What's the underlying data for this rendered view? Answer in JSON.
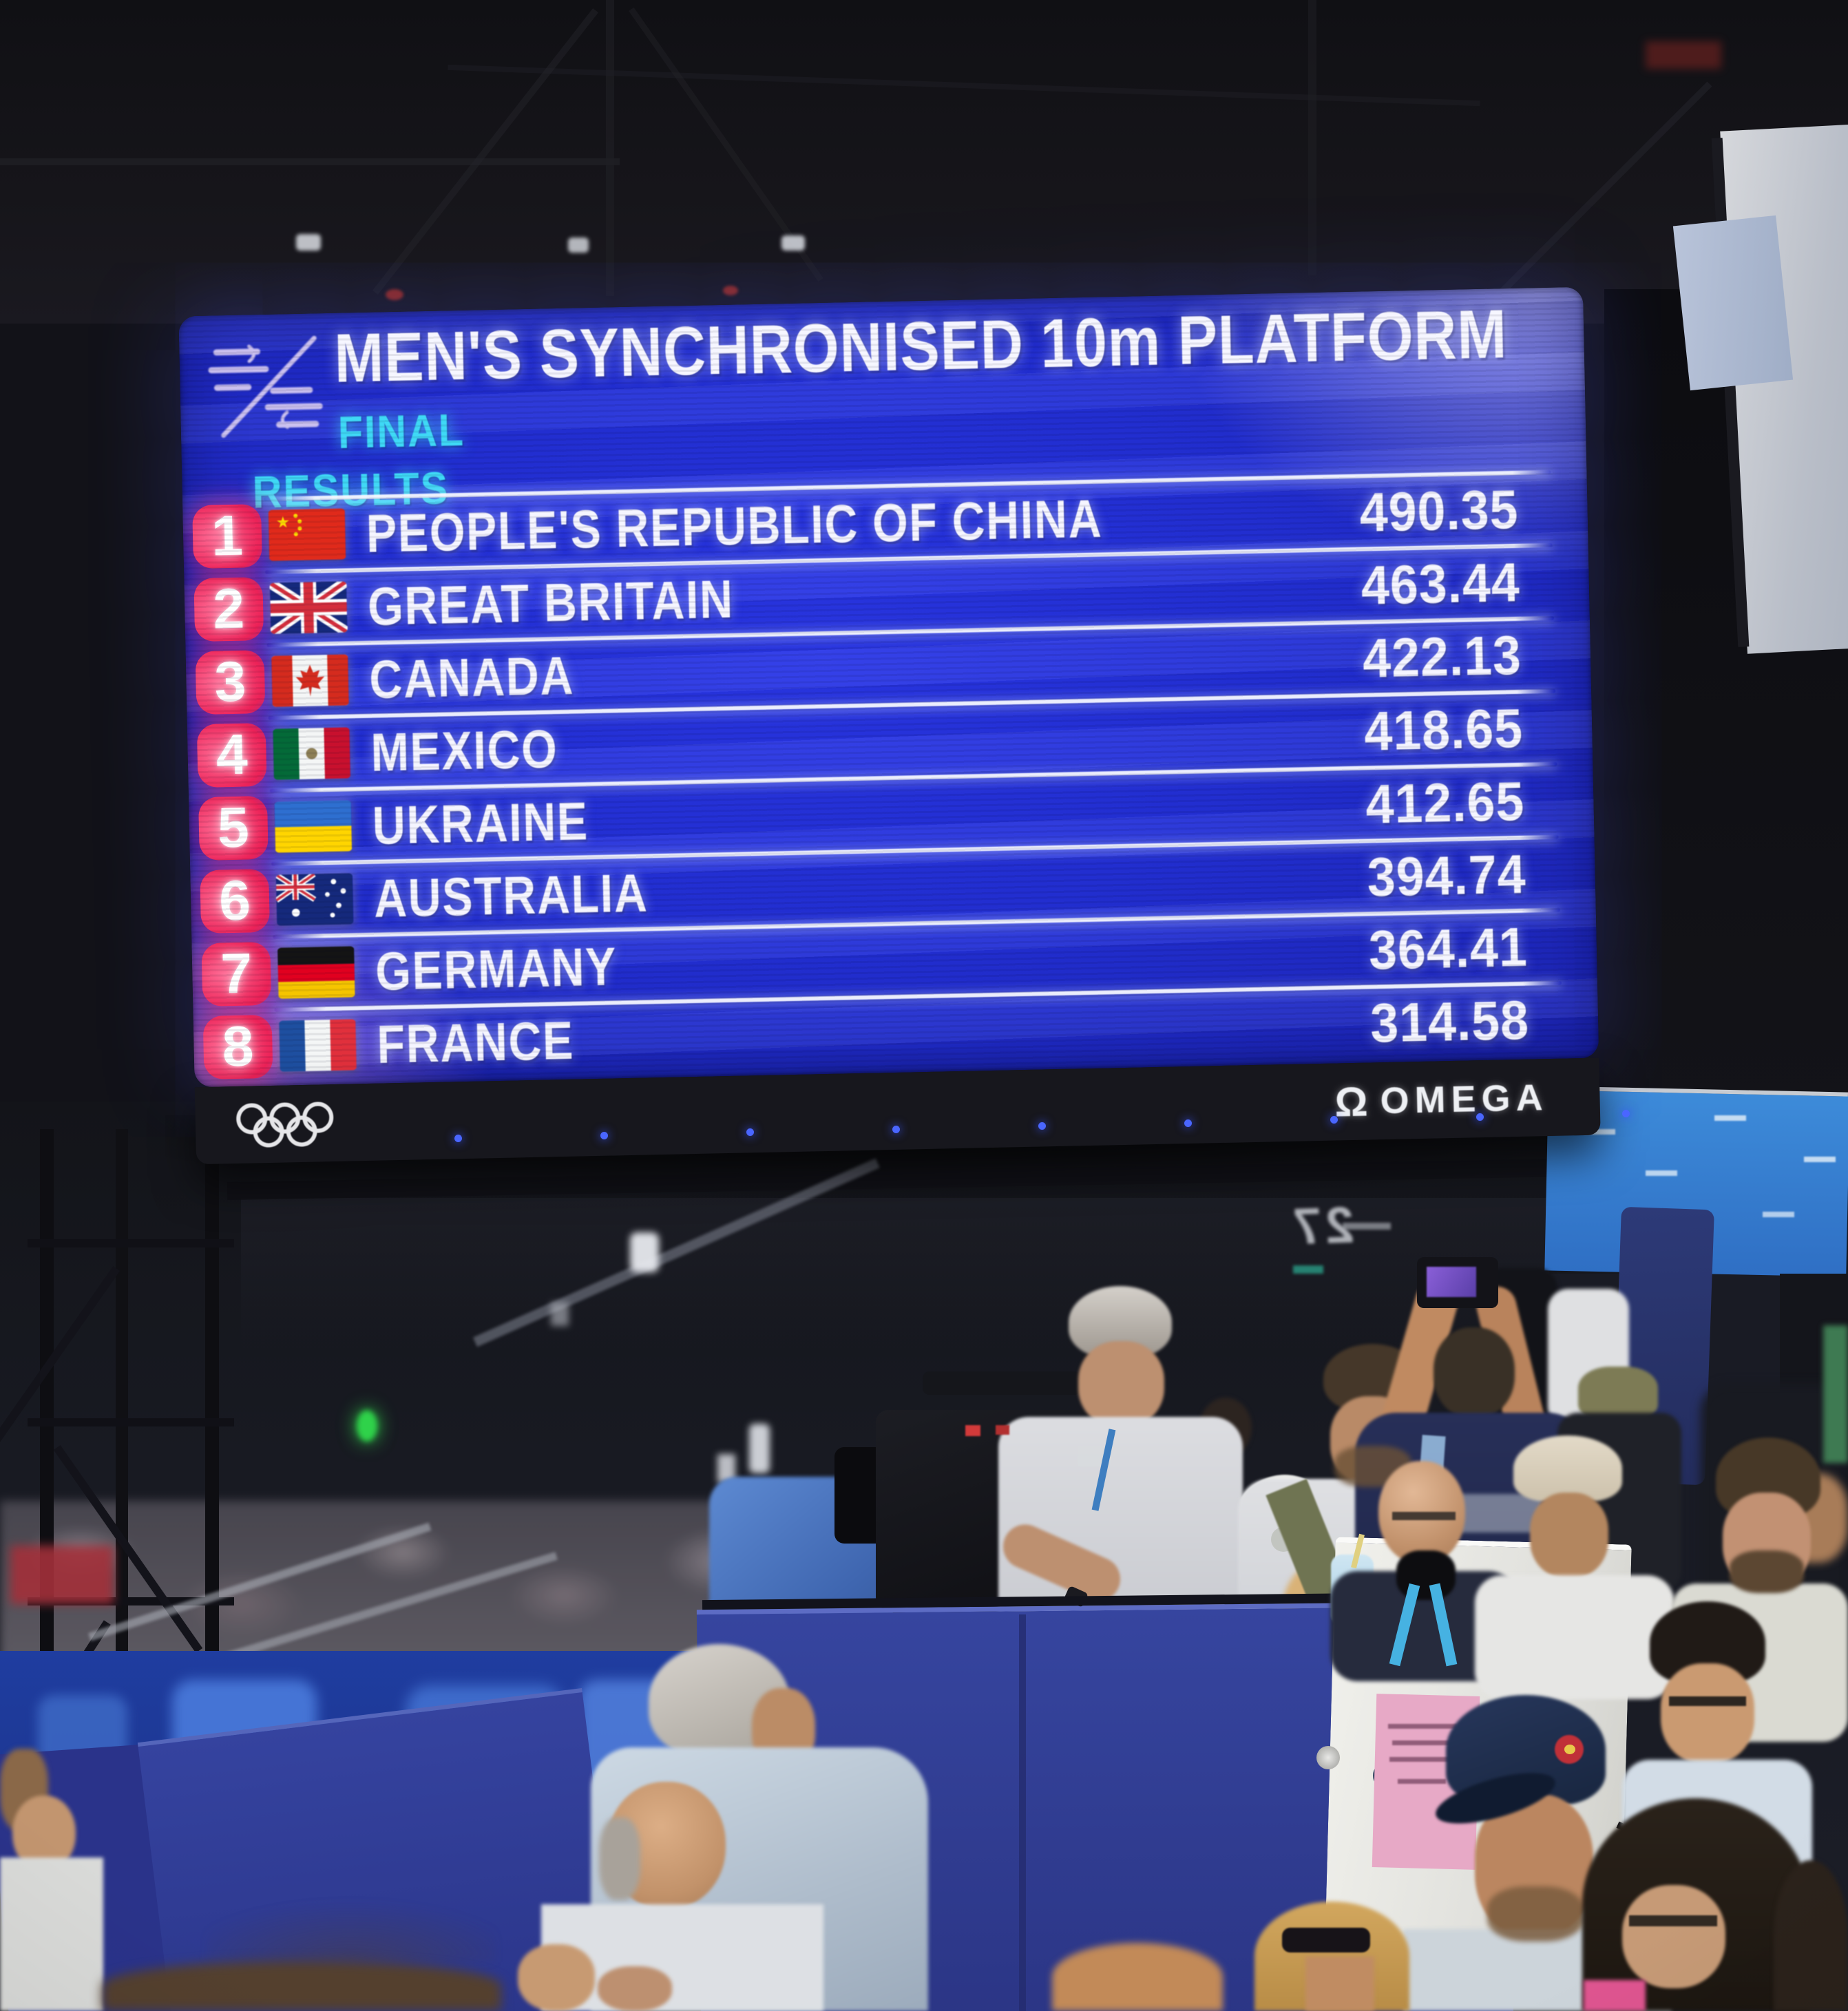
{
  "scoreboard": {
    "title": "MEN'S SYNCHRONISED 10m PLATFORM",
    "stage": "FINAL",
    "results_label": "RESULTS",
    "rows": [
      {
        "rank": "1",
        "country": "PEOPLE'S REPUBLIC OF CHINA",
        "flag": "cn",
        "score": "490.35"
      },
      {
        "rank": "2",
        "country": "GREAT BRITAIN",
        "flag": "gb",
        "score": "463.44"
      },
      {
        "rank": "3",
        "country": "CANADA",
        "flag": "ca",
        "score": "422.13"
      },
      {
        "rank": "4",
        "country": "MEXICO",
        "flag": "mx",
        "score": "418.65"
      },
      {
        "rank": "5",
        "country": "UKRAINE",
        "flag": "ua",
        "score": "412.65"
      },
      {
        "rank": "6",
        "country": "AUSTRALIA",
        "flag": "au",
        "score": "394.74"
      },
      {
        "rank": "7",
        "country": "GERMANY",
        "flag": "de",
        "score": "364.41"
      },
      {
        "rank": "8",
        "country": "FRANCE",
        "flag": "fr",
        "score": "314.58"
      }
    ],
    "sponsor": {
      "symbol": "Ω",
      "name": "OMEGA"
    },
    "icons": {
      "logo": "paris-2024-diving-pictogram",
      "footer_left": "olympic-rings"
    },
    "colors": {
      "screen_blue": "#2330d8",
      "accent_cyan": "#3fd9f6",
      "rank_red": "#ec2257",
      "text": "#f6f6ff"
    }
  },
  "scene": {
    "gate_sign": "27"
  }
}
